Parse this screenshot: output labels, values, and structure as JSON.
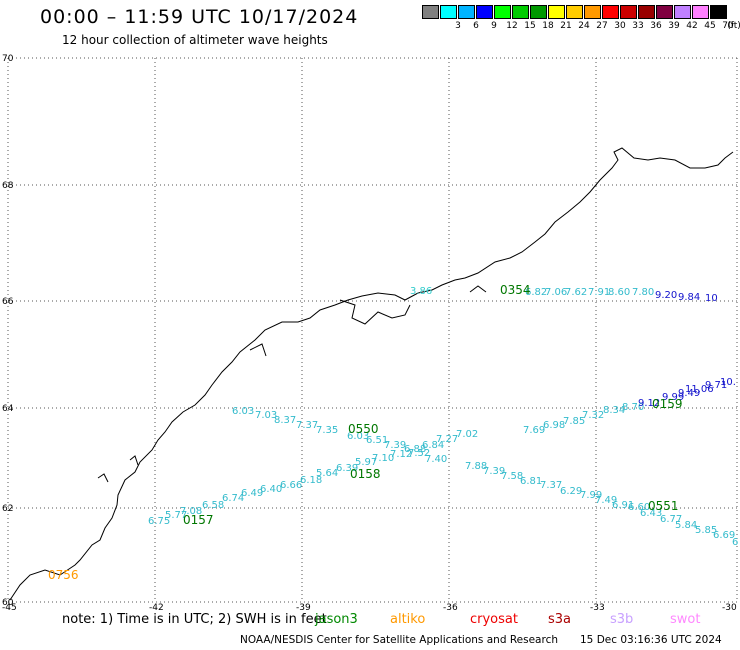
{
  "header": {
    "title": "00:00 – 11:59 UTC 10/17/2024",
    "subtitle": "12 hour collection of altimeter wave heights"
  },
  "colorbar": {
    "unit": "(ft)",
    "bins": [
      {
        "label": "",
        "color": "#808080"
      },
      {
        "label": "3",
        "color": "#00ffff"
      },
      {
        "label": "6",
        "color": "#00b4ff"
      },
      {
        "label": "9",
        "color": "#0000ff"
      },
      {
        "label": "12",
        "color": "#00ff00"
      },
      {
        "label": "15",
        "color": "#00cc00"
      },
      {
        "label": "18",
        "color": "#009900"
      },
      {
        "label": "21",
        "color": "#ffff00"
      },
      {
        "label": "24",
        "color": "#ffcc00"
      },
      {
        "label": "27",
        "color": "#ff9900"
      },
      {
        "label": "30",
        "color": "#ff0000"
      },
      {
        "label": "33",
        "color": "#cc0000"
      },
      {
        "label": "36",
        "color": "#990000"
      },
      {
        "label": "39",
        "color": "#800040"
      },
      {
        "label": "42",
        "color": "#c080ff"
      },
      {
        "label": "45",
        "color": "#ff80ff"
      },
      {
        "label": "70",
        "color": "#000000"
      }
    ]
  },
  "map": {
    "lat_ticks": [
      "70",
      "68",
      "66",
      "64",
      "62",
      "60"
    ],
    "lon_ticks": [
      "-45",
      "-42",
      "-39",
      "-36",
      "-33",
      "-30"
    ],
    "passes": [
      {
        "time": "0354",
        "color": "#007700",
        "labels": [
          {
            "text": "3.86",
            "color": "#33cccc"
          },
          {
            "text": "6.82",
            "color": "#33bbcc"
          },
          {
            "text": "7.06",
            "color": "#33bbcc"
          },
          {
            "text": "7.62",
            "color": "#33bbcc"
          },
          {
            "text": "7.91",
            "color": "#33bbcc"
          },
          {
            "text": "8.60",
            "color": "#33bbcc"
          },
          {
            "text": "7.80",
            "color": "#33bbcc"
          },
          {
            "text": "9.20",
            "color": "#1111cc"
          },
          {
            "text": "9.84",
            "color": "#1111cc"
          },
          {
            "text": "10",
            "color": "#1111cc"
          }
        ]
      },
      {
        "time": "0159",
        "color": "#007700",
        "labels": [
          {
            "text": "7.69",
            "color": "#33bbcc"
          },
          {
            "text": "6.98",
            "color": "#33bbcc"
          },
          {
            "text": "7.85",
            "color": "#33bbcc"
          },
          {
            "text": "7.32",
            "color": "#33bbcc"
          },
          {
            "text": "8.34",
            "color": "#33bbcc"
          },
          {
            "text": "8.70",
            "color": "#33bbcc"
          },
          {
            "text": "9.12",
            "color": "#1111cc"
          },
          {
            "text": "9.99",
            "color": "#1111cc"
          },
          {
            "text": "9.49",
            "color": "#1111cc"
          },
          {
            "text": "11.06",
            "color": "#1111cc"
          },
          {
            "text": "9.71",
            "color": "#1111cc"
          },
          {
            "text": "10.",
            "color": "#1111cc"
          }
        ]
      },
      {
        "time": "0550",
        "color": "#007700",
        "labels": [
          {
            "text": "6.03",
            "color": "#33bbcc"
          },
          {
            "text": "7.03",
            "color": "#33bbcc"
          },
          {
            "text": "8.37",
            "color": "#33bbcc"
          },
          {
            "text": "7.37",
            "color": "#33bbcc"
          },
          {
            "text": "7.35",
            "color": "#33bbcc"
          },
          {
            "text": "6.03",
            "color": "#33bbcc"
          },
          {
            "text": "6.51",
            "color": "#33bbcc"
          },
          {
            "text": "7.39",
            "color": "#33bbcc"
          },
          {
            "text": "6.88",
            "color": "#33bbcc"
          },
          {
            "text": "6.84",
            "color": "#33bbcc"
          },
          {
            "text": "7.27",
            "color": "#33bbcc"
          },
          {
            "text": "7.02",
            "color": "#33bbcc"
          }
        ]
      },
      {
        "time": "0158",
        "color": "#007700",
        "labels": [
          {
            "text": "6.75",
            "color": "#33bbcc"
          },
          {
            "text": "5.77",
            "color": "#33bbcc"
          },
          {
            "text": "7.08",
            "color": "#33bbcc"
          },
          {
            "text": "6.58",
            "color": "#33bbcc"
          },
          {
            "text": "6.74",
            "color": "#33bbcc"
          },
          {
            "text": "6.49",
            "color": "#33bbcc"
          },
          {
            "text": "6.40",
            "color": "#33bbcc"
          },
          {
            "text": "6.66",
            "color": "#33bbcc"
          },
          {
            "text": "6.18",
            "color": "#33bbcc"
          },
          {
            "text": "5.64",
            "color": "#33bbcc"
          },
          {
            "text": "6.39",
            "color": "#33bbcc"
          },
          {
            "text": "5.97",
            "color": "#33bbcc"
          },
          {
            "text": "7.10",
            "color": "#33bbcc"
          },
          {
            "text": "7.12",
            "color": "#33bbcc"
          },
          {
            "text": "7.52",
            "color": "#33bbcc"
          },
          {
            "text": "7.40",
            "color": "#33bbcc"
          }
        ]
      },
      {
        "time": "0551",
        "color": "#007700",
        "labels": [
          {
            "text": "7.88",
            "color": "#33bbcc"
          },
          {
            "text": "7.39",
            "color": "#33bbcc"
          },
          {
            "text": "7.58",
            "color": "#33bbcc"
          },
          {
            "text": "6.81",
            "color": "#33bbcc"
          },
          {
            "text": "7.37",
            "color": "#33bbcc"
          },
          {
            "text": "6.29",
            "color": "#33bbcc"
          },
          {
            "text": "7.99",
            "color": "#33bbcc"
          },
          {
            "text": "7.49",
            "color": "#33bbcc"
          },
          {
            "text": "6.91",
            "color": "#33bbcc"
          },
          {
            "text": "6.60",
            "color": "#33bbcc"
          },
          {
            "text": "6.43",
            "color": "#33bbcc"
          },
          {
            "text": "6.77",
            "color": "#33bbcc"
          },
          {
            "text": "5.84",
            "color": "#33bbcc"
          },
          {
            "text": "5.85",
            "color": "#33bbcc"
          },
          {
            "text": "6.69",
            "color": "#33bbcc"
          },
          {
            "text": "6",
            "color": "#33bbcc"
          }
        ]
      },
      {
        "time": "0157",
        "color": "#007700",
        "labels": []
      },
      {
        "time": "0756",
        "color": "#ff9900",
        "labels": []
      }
    ]
  },
  "footer": {
    "note": "note:  1) Time is in UTC; 2) SWH is in feet",
    "satellites": [
      {
        "name": "jason3",
        "color": "#008800"
      },
      {
        "name": "altiko",
        "color": "#ff9900"
      },
      {
        "name": "cryosat",
        "color": "#ee0000"
      },
      {
        "name": "s3a",
        "color": "#aa0000"
      },
      {
        "name": "s3b",
        "color": "#c8a0ff"
      },
      {
        "name": "swot",
        "color": "#ff88ff"
      }
    ],
    "credit": "NOAA/NESDIS Center for Satellite Applications and Research",
    "timestamp": "15 Dec 03:16:36 UTC 2024"
  }
}
